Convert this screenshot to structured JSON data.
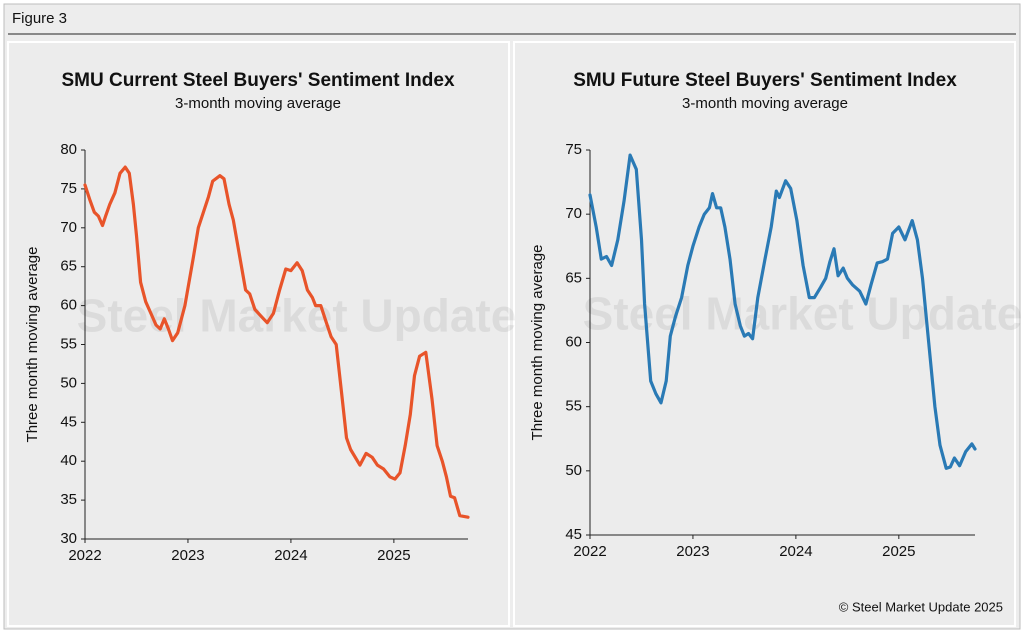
{
  "figure_label": "Figure 3",
  "credit": "© Steel Market Update 2025",
  "watermark": "Steel Market Update",
  "chart_data": [
    {
      "type": "line",
      "title": "SMU Current Steel Buyers' Sentiment Index",
      "subtitle": "3-month moving average",
      "y_label": "Three month moving average",
      "color": "#e8542a",
      "xlim": [
        2022,
        2025.72
      ],
      "xticks": [
        2022,
        2023,
        2024,
        2025
      ],
      "ylim": [
        30,
        80
      ],
      "yticks": [
        30,
        35,
        40,
        45,
        50,
        55,
        60,
        65,
        70,
        75,
        80
      ],
      "x": [
        2022,
        2022.05,
        2022.09,
        2022.13,
        2022.17,
        2022.2,
        2022.24,
        2022.29,
        2022.34,
        2022.39,
        2022.43,
        2022.47,
        2022.5,
        2022.54,
        2022.59,
        2022.64,
        2022.69,
        2022.73,
        2022.77,
        2022.81,
        2022.85,
        2022.9,
        2022.97,
        2023.05,
        2023.1,
        2023.15,
        2023.2,
        2023.24,
        2023.31,
        2023.35,
        2023.4,
        2023.44,
        2023.48,
        2023.52,
        2023.56,
        2023.6,
        2023.65,
        2023.72,
        2023.77,
        2023.83,
        2023.89,
        2023.95,
        2024,
        2024.06,
        2024.11,
        2024.16,
        2024.21,
        2024.24,
        2024.29,
        2024.34,
        2024.39,
        2024.44,
        2024.49,
        2024.54,
        2024.58,
        2024.67,
        2024.73,
        2024.79,
        2024.84,
        2024.9,
        2024.96,
        2025.01,
        2025.06,
        2025.11,
        2025.16,
        2025.2,
        2025.25,
        2025.31,
        2025.37,
        2025.42,
        2025.47,
        2025.51,
        2025.55,
        2025.59,
        2025.64,
        2025.72
      ],
      "values": [
        75.5,
        73.5,
        72,
        71.5,
        70.3,
        71.5,
        73,
        74.5,
        77,
        77.8,
        77,
        73,
        69,
        63,
        60.5,
        59,
        57.5,
        57,
        58.3,
        57,
        55.5,
        56.5,
        60,
        66,
        70,
        72,
        74,
        76,
        76.7,
        76.3,
        73,
        71,
        68,
        65,
        62,
        61.5,
        59.5,
        58.5,
        57.8,
        59,
        62,
        64.7,
        64.5,
        65.5,
        64.5,
        62,
        61,
        60,
        60,
        58,
        56,
        55,
        49,
        43,
        41.5,
        39.5,
        41,
        40.5,
        39.5,
        39,
        38,
        37.7,
        38.5,
        42,
        46,
        51,
        53.5,
        54,
        48,
        42,
        40,
        38,
        35.5,
        35.3,
        33,
        32.8
      ]
    },
    {
      "type": "line",
      "title": "SMU Future Steel Buyers' Sentiment Index",
      "subtitle": "3-month moving average",
      "y_label": "Three month moving average",
      "color": "#2a7ab5",
      "xlim": [
        2022,
        2025.74
      ],
      "xticks": [
        2022,
        2023,
        2024,
        2025
      ],
      "ylim": [
        45,
        75
      ],
      "yticks": [
        45,
        50,
        55,
        60,
        65,
        70,
        75
      ],
      "x": [
        2022,
        2022.06,
        2022.11,
        2022.16,
        2022.21,
        2022.27,
        2022.33,
        2022.39,
        2022.45,
        2022.5,
        2022.53,
        2022.59,
        2022.64,
        2022.69,
        2022.74,
        2022.78,
        2022.83,
        2022.89,
        2022.95,
        2023,
        2023.06,
        2023.11,
        2023.16,
        2023.19,
        2023.23,
        2023.27,
        2023.31,
        2023.36,
        2023.41,
        2023.46,
        2023.5,
        2023.54,
        2023.58,
        2023.63,
        2023.7,
        2023.76,
        2023.81,
        2023.84,
        2023.9,
        2023.95,
        2024.01,
        2024.07,
        2024.13,
        2024.18,
        2024.24,
        2024.29,
        2024.33,
        2024.37,
        2024.41,
        2024.46,
        2024.5,
        2024.55,
        2024.62,
        2024.68,
        2024.73,
        2024.79,
        2024.84,
        2024.89,
        2024.94,
        2025,
        2025.06,
        2025.13,
        2025.18,
        2025.23,
        2025.29,
        2025.35,
        2025.4,
        2025.46,
        2025.5,
        2025.54,
        2025.59,
        2025.65,
        2025.71,
        2025.74
      ],
      "values": [
        71.5,
        69,
        66.5,
        66.7,
        66,
        68,
        71,
        74.6,
        73.5,
        68,
        63,
        57,
        56,
        55.3,
        57,
        60.5,
        62,
        63.5,
        66,
        67.5,
        69,
        70,
        70.5,
        71.6,
        70.5,
        70.5,
        69,
        66.5,
        63,
        61.3,
        60.5,
        60.7,
        60.3,
        63.5,
        66.5,
        69,
        71.8,
        71.3,
        72.6,
        72,
        69.5,
        66,
        63.5,
        63.5,
        64.3,
        65,
        66.3,
        67.3,
        65.2,
        65.8,
        65,
        64.5,
        64,
        63,
        64.5,
        66.2,
        66.3,
        66.5,
        68.5,
        69,
        68,
        69.5,
        68,
        65,
        60,
        55,
        52,
        50.2,
        50.3,
        51,
        50.4,
        51.5,
        52.1,
        51.7
      ]
    }
  ]
}
